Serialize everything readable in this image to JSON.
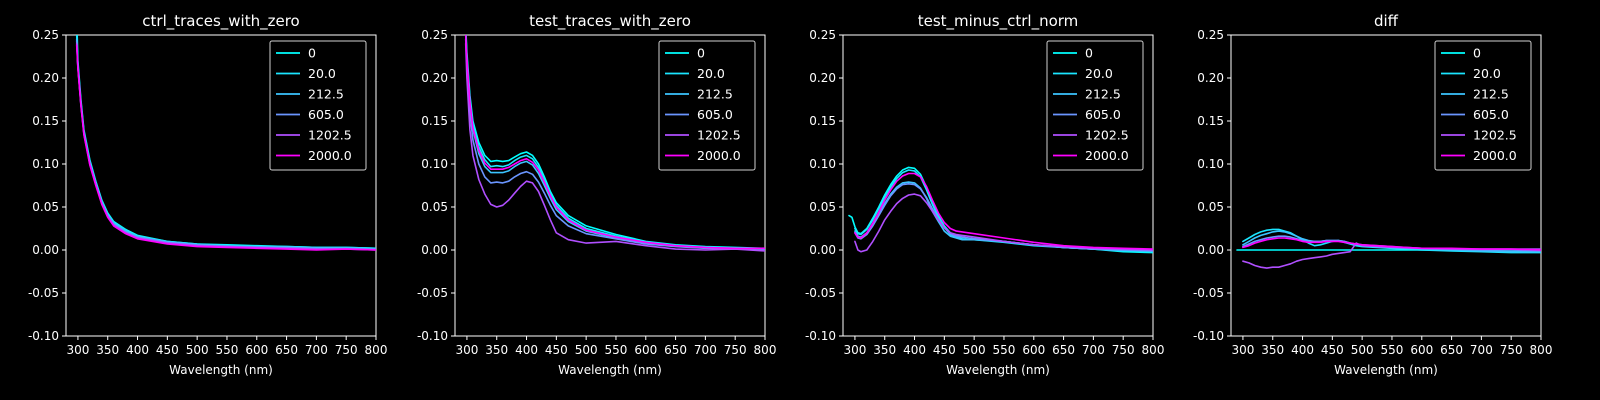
{
  "chart_data": [
    {
      "type": "line",
      "title": "ctrl_traces_with_zero",
      "xlabel": "Wavelength (nm)",
      "ylabel": "",
      "xlim": [
        280,
        800
      ],
      "ylim": [
        -0.1,
        0.25
      ],
      "xticks": [
        300,
        350,
        400,
        450,
        500,
        550,
        600,
        650,
        700,
        750,
        800
      ],
      "yticks": [
        "-0.10",
        "-0.05",
        "0.00",
        "0.05",
        "0.10",
        "0.15",
        "0.20",
        "0.25"
      ],
      "legend_position": "upper right",
      "grid": false,
      "x": [
        298,
        300,
        305,
        310,
        320,
        330,
        340,
        350,
        360,
        380,
        400,
        450,
        500,
        550,
        600,
        650,
        700,
        750,
        800
      ],
      "series": [
        {
          "name": "0",
          "color": "#00ffff",
          "values": [
            0.27,
            0.22,
            0.175,
            0.14,
            0.105,
            0.08,
            0.058,
            0.043,
            0.033,
            0.024,
            0.017,
            0.01,
            0.007,
            0.006,
            0.005,
            0.004,
            0.003,
            0.003,
            0.002
          ]
        },
        {
          "name": "20.0",
          "color": "#1ae5ff",
          "values": [
            0.25,
            0.215,
            0.172,
            0.138,
            0.103,
            0.079,
            0.057,
            0.042,
            0.032,
            0.023,
            0.016,
            0.01,
            0.007,
            0.005,
            0.004,
            0.004,
            0.003,
            0.003,
            0.002
          ]
        },
        {
          "name": "212.5",
          "color": "#3bc4ff",
          "values": [
            0.245,
            0.214,
            0.171,
            0.137,
            0.102,
            0.078,
            0.056,
            0.041,
            0.031,
            0.022,
            0.015,
            0.009,
            0.006,
            0.005,
            0.004,
            0.003,
            0.002,
            0.002,
            0.001
          ]
        },
        {
          "name": "605.0",
          "color": "#6a95ff",
          "values": [
            0.243,
            0.213,
            0.17,
            0.136,
            0.101,
            0.077,
            0.055,
            0.04,
            0.03,
            0.021,
            0.015,
            0.009,
            0.006,
            0.004,
            0.003,
            0.003,
            0.002,
            0.002,
            0.001
          ]
        },
        {
          "name": "1202.5",
          "color": "#b04fff",
          "values": [
            0.24,
            0.212,
            0.169,
            0.135,
            0.1,
            0.076,
            0.054,
            0.039,
            0.029,
            0.02,
            0.014,
            0.008,
            0.005,
            0.004,
            0.003,
            0.002,
            0.001,
            0.001,
            0.0
          ]
        },
        {
          "name": "2000.0",
          "color": "#ff00ff",
          "values": [
            0.238,
            0.211,
            0.168,
            0.134,
            0.099,
            0.075,
            0.053,
            0.038,
            0.028,
            0.019,
            0.013,
            0.007,
            0.004,
            0.003,
            0.002,
            0.001,
            0.0,
            0.001,
            0.0
          ]
        }
      ]
    },
    {
      "type": "line",
      "title": "test_traces_with_zero",
      "xlabel": "Wavelength (nm)",
      "ylabel": "",
      "xlim": [
        280,
        800
      ],
      "ylim": [
        -0.1,
        0.25
      ],
      "xticks": [
        300,
        350,
        400,
        450,
        500,
        550,
        600,
        650,
        700,
        750,
        800
      ],
      "yticks": [
        "-0.10",
        "-0.05",
        "0.00",
        "0.05",
        "0.10",
        "0.15",
        "0.20",
        "0.25"
      ],
      "legend_position": "upper right",
      "grid": false,
      "x": [
        298,
        300,
        305,
        310,
        320,
        330,
        340,
        350,
        360,
        370,
        380,
        390,
        400,
        410,
        420,
        430,
        440,
        450,
        470,
        500,
        550,
        600,
        650,
        700,
        750,
        800
      ],
      "series": [
        {
          "name": "0",
          "color": "#00ffff",
          "values": [
            0.26,
            0.23,
            0.18,
            0.15,
            0.125,
            0.11,
            0.103,
            0.104,
            0.103,
            0.104,
            0.108,
            0.112,
            0.114,
            0.11,
            0.1,
            0.085,
            0.068,
            0.055,
            0.04,
            0.028,
            0.018,
            0.01,
            0.006,
            0.004,
            0.003,
            0.002
          ]
        },
        {
          "name": "20.0",
          "color": "#1ae5ff",
          "values": [
            0.255,
            0.225,
            0.175,
            0.145,
            0.12,
            0.105,
            0.097,
            0.098,
            0.097,
            0.099,
            0.104,
            0.108,
            0.11,
            0.106,
            0.096,
            0.081,
            0.065,
            0.052,
            0.037,
            0.025,
            0.016,
            0.009,
            0.005,
            0.003,
            0.002,
            0.002
          ]
        },
        {
          "name": "212.5",
          "color": "#3bc4ff",
          "values": [
            0.25,
            0.22,
            0.17,
            0.14,
            0.112,
            0.097,
            0.09,
            0.09,
            0.09,
            0.092,
            0.097,
            0.101,
            0.103,
            0.099,
            0.089,
            0.075,
            0.06,
            0.047,
            0.033,
            0.022,
            0.014,
            0.008,
            0.005,
            0.003,
            0.002,
            0.001
          ]
        },
        {
          "name": "605.0",
          "color": "#6a95ff",
          "values": [
            0.245,
            0.215,
            0.16,
            0.128,
            0.1,
            0.085,
            0.078,
            0.079,
            0.078,
            0.08,
            0.085,
            0.089,
            0.091,
            0.088,
            0.079,
            0.066,
            0.052,
            0.04,
            0.028,
            0.019,
            0.013,
            0.007,
            0.004,
            0.002,
            0.002,
            0.001
          ]
        },
        {
          "name": "1202.5",
          "color": "#b04fff",
          "values": [
            0.24,
            0.2,
            0.14,
            0.11,
            0.082,
            0.065,
            0.053,
            0.05,
            0.052,
            0.058,
            0.066,
            0.074,
            0.08,
            0.078,
            0.068,
            0.052,
            0.035,
            0.02,
            0.012,
            0.008,
            0.01,
            0.005,
            0.001,
            0.0,
            0.001,
            -0.001
          ]
        },
        {
          "name": "2000.0",
          "color": "#ff00ff",
          "values": [
            0.25,
            0.222,
            0.172,
            0.142,
            0.116,
            0.101,
            0.094,
            0.094,
            0.094,
            0.096,
            0.1,
            0.104,
            0.106,
            0.102,
            0.093,
            0.079,
            0.063,
            0.05,
            0.035,
            0.023,
            0.015,
            0.009,
            0.005,
            0.003,
            0.002,
            0.002
          ]
        }
      ]
    },
    {
      "type": "line",
      "title": "test_minus_ctrl_norm",
      "xlabel": "Wavelength (nm)",
      "ylabel": "",
      "xlim": [
        280,
        800
      ],
      "ylim": [
        -0.1,
        0.25
      ],
      "xticks": [
        300,
        350,
        400,
        450,
        500,
        550,
        600,
        650,
        700,
        750,
        800
      ],
      "yticks": [
        "-0.10",
        "-0.05",
        "0.00",
        "0.05",
        "0.10",
        "0.15",
        "0.20",
        "0.25"
      ],
      "legend_position": "upper right",
      "grid": false,
      "x": [
        290,
        295,
        300,
        305,
        310,
        320,
        330,
        340,
        350,
        360,
        370,
        380,
        390,
        400,
        410,
        420,
        430,
        440,
        450,
        460,
        470,
        480,
        490,
        500,
        550,
        600,
        650,
        700,
        750,
        800
      ],
      "series": [
        {
          "name": "0",
          "color": "#00ffff",
          "values": [
            0.04,
            0.038,
            0.027,
            0.02,
            0.019,
            0.025,
            0.037,
            0.05,
            0.064,
            0.076,
            0.086,
            0.093,
            0.096,
            0.095,
            0.088,
            0.073,
            0.055,
            0.04,
            0.028,
            0.02,
            0.017,
            0.015,
            0.014,
            0.013,
            0.01,
            0.006,
            0.003,
            0.001,
            -0.002,
            -0.003
          ]
        },
        {
          "name": "20.0",
          "color": "#1ae5ff",
          "values": [
            null,
            null,
            0.025,
            0.019,
            0.018,
            0.024,
            0.035,
            0.048,
            0.061,
            0.073,
            0.083,
            0.09,
            0.093,
            0.092,
            0.085,
            0.07,
            0.053,
            0.038,
            0.026,
            0.018,
            0.015,
            0.013,
            0.012,
            0.012,
            0.009,
            0.005,
            0.003,
            0.001,
            -0.001,
            -0.002
          ]
        },
        {
          "name": "212.5",
          "color": "#3bc4ff",
          "values": [
            null,
            null,
            0.022,
            0.016,
            0.015,
            0.02,
            0.03,
            0.042,
            0.054,
            0.065,
            0.073,
            0.078,
            0.079,
            0.078,
            0.072,
            0.06,
            0.045,
            0.033,
            0.022,
            0.016,
            0.014,
            0.012,
            0.012,
            0.012,
            0.01,
            0.006,
            0.003,
            0.001,
            0.0,
            -0.001
          ]
        },
        {
          "name": "605.0",
          "color": "#6a95ff",
          "values": [
            null,
            null,
            0.02,
            0.014,
            0.013,
            0.018,
            0.028,
            0.04,
            0.052,
            0.063,
            0.071,
            0.076,
            0.077,
            0.076,
            0.071,
            0.061,
            0.048,
            0.036,
            0.026,
            0.019,
            0.016,
            0.015,
            0.014,
            0.013,
            0.01,
            0.006,
            0.003,
            0.001,
            0.0,
            -0.001
          ]
        },
        {
          "name": "1202.5",
          "color": "#b04fff",
          "values": [
            null,
            null,
            0.01,
            0.0,
            -0.002,
            0.0,
            0.01,
            0.022,
            0.035,
            0.045,
            0.054,
            0.06,
            0.064,
            0.065,
            0.063,
            0.055,
            0.045,
            0.035,
            0.026,
            0.02,
            0.018,
            0.017,
            0.016,
            0.015,
            0.01,
            0.006,
            0.004,
            0.002,
            0.001,
            0.0
          ]
        },
        {
          "name": "2000.0",
          "color": "#ff00ff",
          "values": [
            null,
            null,
            0.02,
            0.015,
            0.014,
            0.02,
            0.031,
            0.044,
            0.058,
            0.07,
            0.08,
            0.086,
            0.089,
            0.089,
            0.085,
            0.074,
            0.058,
            0.043,
            0.032,
            0.025,
            0.022,
            0.021,
            0.02,
            0.019,
            0.014,
            0.009,
            0.005,
            0.003,
            0.002,
            0.001
          ]
        }
      ]
    },
    {
      "type": "line",
      "title": "diff",
      "xlabel": "Wavelength (nm)",
      "ylabel": "",
      "xlim": [
        280,
        800
      ],
      "ylim": [
        -0.1,
        0.25
      ],
      "xticks": [
        300,
        350,
        400,
        450,
        500,
        550,
        600,
        650,
        700,
        750,
        800
      ],
      "yticks": [
        "-0.10",
        "-0.05",
        "0.00",
        "0.05",
        "0.10",
        "0.15",
        "0.20",
        "0.25"
      ],
      "legend_position": "upper right",
      "grid": false,
      "x": [
        290,
        300,
        310,
        320,
        330,
        340,
        350,
        360,
        370,
        380,
        390,
        400,
        410,
        420,
        430,
        440,
        450,
        460,
        470,
        480,
        490,
        500,
        550,
        600,
        650,
        700,
        750,
        800
      ],
      "series": [
        {
          "name": "0",
          "color": "#00ffff",
          "values": [
            0.0,
            0.0,
            0.0,
            0.0,
            0.0,
            0.0,
            0.0,
            0.0,
            0.0,
            0.0,
            0.0,
            0.0,
            0.0,
            0.0,
            0.0,
            0.0,
            0.0,
            0.0,
            0.0,
            0.0,
            0.0,
            0.0,
            0.0,
            0.0,
            0.0,
            0.0,
            0.0,
            0.0
          ]
        },
        {
          "name": "20.0",
          "color": "#1ae5ff",
          "values": [
            null,
            0.01,
            0.014,
            0.018,
            0.021,
            0.023,
            0.024,
            0.024,
            0.022,
            0.02,
            0.016,
            0.012,
            0.008,
            0.005,
            0.006,
            0.008,
            0.01,
            0.011,
            0.009,
            0.007,
            0.005,
            0.004,
            0.002,
            0.0,
            -0.001,
            -0.002,
            -0.003,
            -0.003
          ]
        },
        {
          "name": "212.5",
          "color": "#3bc4ff",
          "values": [
            null,
            0.006,
            0.01,
            0.014,
            0.017,
            0.019,
            0.021,
            0.022,
            0.021,
            0.019,
            0.016,
            0.013,
            0.011,
            0.01,
            0.01,
            0.011,
            0.011,
            0.011,
            0.01,
            0.008,
            0.006,
            0.005,
            0.003,
            0.001,
            0.0,
            -0.001,
            -0.002,
            -0.002
          ]
        },
        {
          "name": "605.0",
          "color": "#6a95ff",
          "values": [
            null,
            0.004,
            0.007,
            0.01,
            0.012,
            0.014,
            0.015,
            0.016,
            0.016,
            0.015,
            0.013,
            0.011,
            0.01,
            0.01,
            0.01,
            0.011,
            0.011,
            0.011,
            0.01,
            0.008,
            0.007,
            0.006,
            0.004,
            0.002,
            0.001,
            0.0,
            0.0,
            -0.001
          ]
        },
        {
          "name": "1202.5",
          "color": "#b04fff",
          "values": [
            null,
            -0.013,
            -0.015,
            -0.018,
            -0.02,
            -0.021,
            -0.02,
            -0.02,
            -0.018,
            -0.016,
            -0.013,
            -0.011,
            -0.01,
            -0.009,
            -0.008,
            -0.007,
            -0.005,
            -0.004,
            -0.003,
            -0.002,
            0.008,
            0.005,
            0.003,
            0.002,
            0.001,
            0.001,
            0.001,
            0.001
          ]
        },
        {
          "name": "2000.0",
          "color": "#ff00ff",
          "values": [
            null,
            0.003,
            0.005,
            0.008,
            0.01,
            0.012,
            0.013,
            0.014,
            0.014,
            0.013,
            0.012,
            0.01,
            0.009,
            0.009,
            0.009,
            0.01,
            0.01,
            0.01,
            0.009,
            0.008,
            0.007,
            0.006,
            0.004,
            0.002,
            0.002,
            0.001,
            0.001,
            0.0
          ]
        }
      ]
    }
  ]
}
